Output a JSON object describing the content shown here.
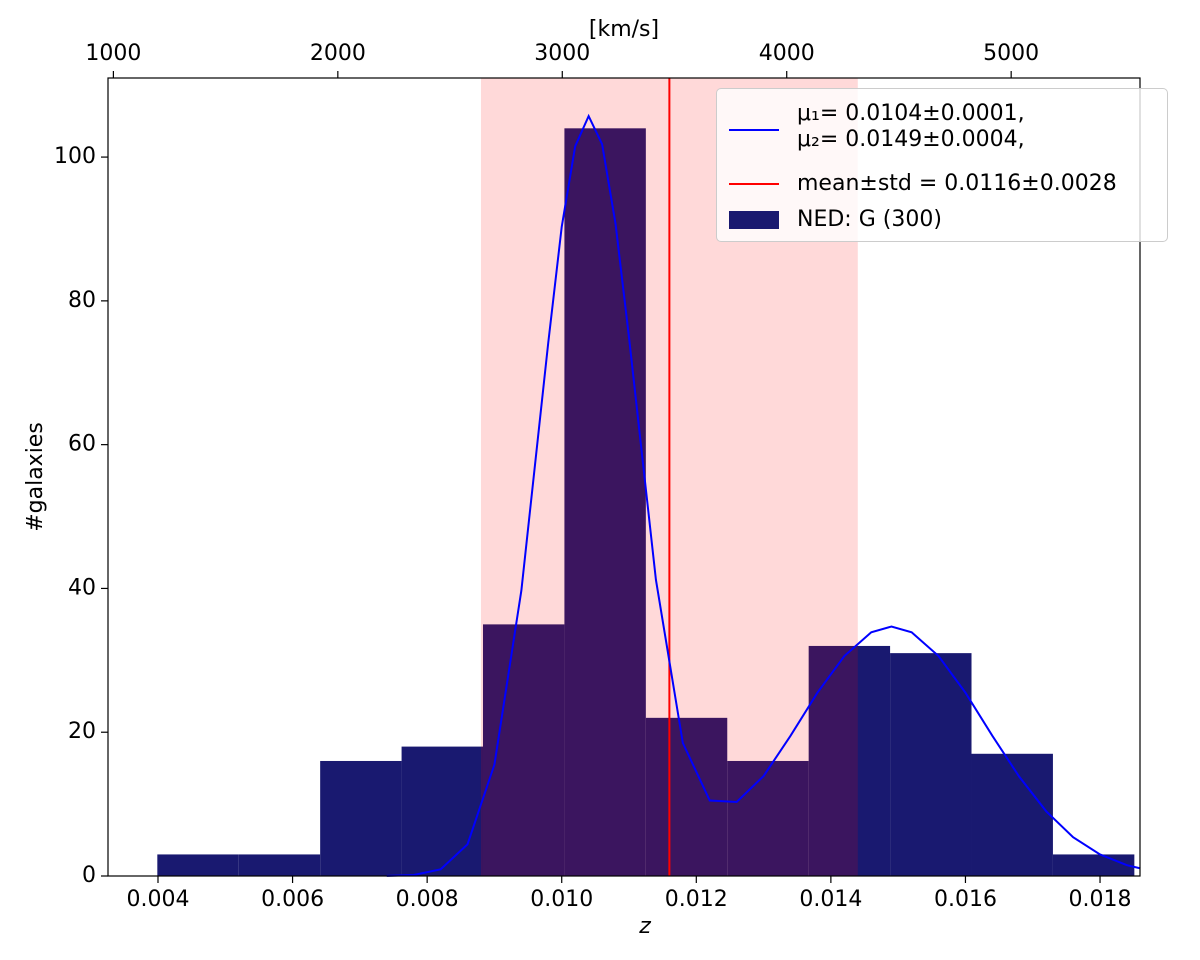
{
  "chart_data": {
    "type": "histogram",
    "xlabel": "z",
    "ylabel": "#galaxies",
    "x2label": "[km/s]",
    "name": "NED: G (300)",
    "color": "#191970",
    "bins": [
      0.00399,
      0.0052,
      0.00641,
      0.00762,
      0.00883,
      0.01004,
      0.01125,
      0.01246,
      0.01367,
      0.01488,
      0.01609,
      0.0173,
      0.01851
    ],
    "counts": [
      3,
      3,
      16,
      18,
      35,
      104,
      22,
      16,
      32,
      31,
      17,
      3
    ],
    "xlim": [
      0.003257,
      0.018594
    ],
    "ylim": [
      0,
      111
    ],
    "xticks": [
      0.004,
      0.006,
      0.008,
      {
        "value": 0.01,
        "label": "0.010"
      },
      0.012,
      0.014,
      0.016,
      0.018
    ],
    "yticks": [
      0,
      20,
      40,
      60,
      80,
      100
    ],
    "x2lim": [
      976,
      5574
    ],
    "x2ticks": [
      1000,
      2000,
      3000,
      4000,
      5000
    ],
    "fit": {
      "name": "μ₁= 0.0104±0.0001,\nμ₂= 0.0149±0.0004,",
      "color": "#0000ff",
      "x": [
        0.0074,
        0.0078,
        0.0082,
        0.0086,
        0.009,
        0.0094,
        0.0098,
        0.01,
        0.0102,
        0.0104,
        0.0106,
        0.0108,
        0.011,
        0.0114,
        0.0118,
        0.0122,
        0.0126,
        0.013,
        0.0134,
        0.0138,
        0.0142,
        0.0146,
        0.0149,
        0.0152,
        0.0156,
        0.016,
        0.0164,
        0.0168,
        0.0172,
        0.0176,
        0.018,
        0.0184,
        0.0186
      ],
      "values": [
        0.02,
        0.14,
        0.93,
        4.4,
        15.5,
        39.7,
        74.2,
        90.3,
        101.5,
        105.7,
        101.8,
        90.7,
        74.9,
        41.2,
        18.5,
        10.5,
        10.3,
        13.9,
        19.5,
        25.5,
        30.6,
        33.9,
        34.7,
        33.9,
        30.6,
        25.5,
        19.5,
        13.8,
        9.0,
        5.4,
        3.0,
        1.5,
        1.06
      ]
    },
    "mean_line": {
      "name": "mean±std = 0.0116±0.0028",
      "color": "#ff0000",
      "value": 0.0116,
      "std": 0.0028,
      "band_alpha": 0.15
    },
    "legend": "upper right"
  }
}
